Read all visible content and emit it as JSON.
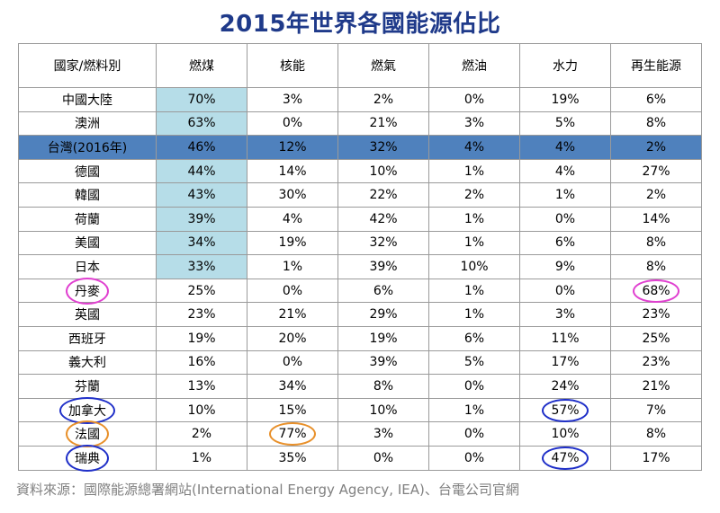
{
  "title": "2015年世界各國能源佔比",
  "source": "資料來源：國際能源總署網站(International Energy Agency, IEA)、台電公司官網",
  "colors": {
    "title": "#1f3a8a",
    "coal_highlight": "#b6dde8",
    "taiwan_row": "#4f81bd",
    "circle_magenta": "#e040d0",
    "circle_blue": "#1f2fc8",
    "circle_orange": "#e8902a"
  },
  "chart_data": {
    "type": "table",
    "title": "2015年世界各國能源佔比",
    "columns": [
      "國家/燃料別",
      "燃煤",
      "核能",
      "燃氣",
      "燃油",
      "水力",
      "再生能源"
    ],
    "rows": [
      {
        "country": "中國大陸",
        "values": [
          "70%",
          "3%",
          "2%",
          "0%",
          "19%",
          "6%"
        ]
      },
      {
        "country": "澳洲",
        "values": [
          "63%",
          "0%",
          "21%",
          "3%",
          "5%",
          "8%"
        ]
      },
      {
        "country": "台灣(2016年)",
        "values": [
          "46%",
          "12%",
          "32%",
          "4%",
          "4%",
          "2%"
        ],
        "highlight": true
      },
      {
        "country": "德國",
        "values": [
          "44%",
          "14%",
          "10%",
          "1%",
          "4%",
          "27%"
        ]
      },
      {
        "country": "韓國",
        "values": [
          "43%",
          "30%",
          "22%",
          "2%",
          "1%",
          "2%"
        ]
      },
      {
        "country": "荷蘭",
        "values": [
          "39%",
          "4%",
          "42%",
          "1%",
          "0%",
          "14%"
        ]
      },
      {
        "country": "美國",
        "values": [
          "34%",
          "19%",
          "32%",
          "1%",
          "6%",
          "8%"
        ]
      },
      {
        "country": "日本",
        "values": [
          "33%",
          "1%",
          "39%",
          "10%",
          "9%",
          "8%"
        ]
      },
      {
        "country": "丹麥",
        "values": [
          "25%",
          "0%",
          "6%",
          "1%",
          "0%",
          "68%"
        ],
        "circled_country": "magenta",
        "circled_cols": {
          "5": "magenta"
        }
      },
      {
        "country": "英國",
        "values": [
          "23%",
          "21%",
          "29%",
          "1%",
          "3%",
          "23%"
        ]
      },
      {
        "country": "西班牙",
        "values": [
          "19%",
          "20%",
          "19%",
          "6%",
          "11%",
          "25%"
        ]
      },
      {
        "country": "義大利",
        "values": [
          "16%",
          "0%",
          "39%",
          "5%",
          "17%",
          "23%"
        ]
      },
      {
        "country": "芬蘭",
        "values": [
          "13%",
          "34%",
          "8%",
          "0%",
          "24%",
          "21%"
        ]
      },
      {
        "country": "加拿大",
        "values": [
          "10%",
          "15%",
          "10%",
          "1%",
          "57%",
          "7%"
        ],
        "circled_country": "blue",
        "circled_cols": {
          "4": "blue"
        }
      },
      {
        "country": "法國",
        "values": [
          "2%",
          "77%",
          "3%",
          "0%",
          "10%",
          "8%"
        ],
        "circled_country": "orange",
        "circled_cols": {
          "1": "orange"
        }
      },
      {
        "country": "瑞典",
        "values": [
          "1%",
          "35%",
          "0%",
          "0%",
          "47%",
          "17%"
        ],
        "circled_country": "blue",
        "circled_cols": {
          "4": "blue"
        }
      }
    ],
    "coal_highlight_rows": 8
  }
}
